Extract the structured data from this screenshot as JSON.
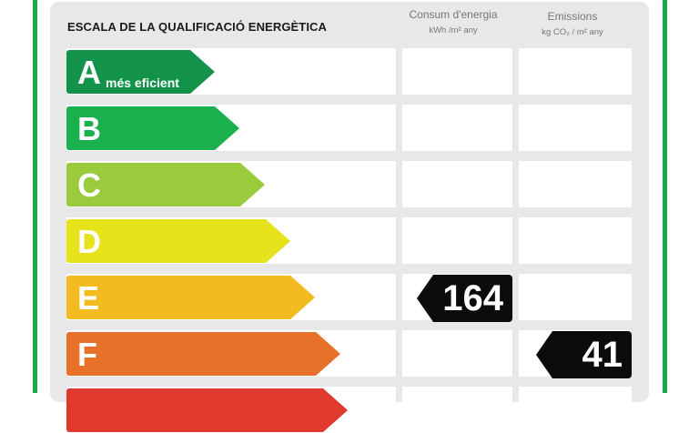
{
  "header": {
    "title": "ESCALA DE LA QUALIFICACIÓ ENERGÈTICA",
    "consum": {
      "title": "Consum d'energia",
      "unit": "kWh /m²  any"
    },
    "emissions": {
      "title": "Emissions",
      "unit": "kg CO₂ / m²  any"
    }
  },
  "ratings": [
    {
      "letter": "A",
      "sublabel": "més eficient",
      "color": "#13934a"
    },
    {
      "letter": "B",
      "sublabel": "",
      "color": "#19b04d"
    },
    {
      "letter": "C",
      "sublabel": "",
      "color": "#9acb3c"
    },
    {
      "letter": "D",
      "sublabel": "",
      "color": "#e6e21b"
    },
    {
      "letter": "E",
      "sublabel": "",
      "color": "#f3bb1f"
    },
    {
      "letter": "F",
      "sublabel": "",
      "color": "#e8712a"
    },
    {
      "letter": "",
      "sublabel": "",
      "color": "#e03a2f"
    }
  ],
  "consum_value": {
    "rating": "E",
    "value": "164"
  },
  "emissions_value": {
    "rating": "F",
    "value": "41"
  },
  "colors": {
    "frame": "#1aa64b",
    "panel": "#e8e8e8",
    "badge": "#0b0b0b"
  }
}
